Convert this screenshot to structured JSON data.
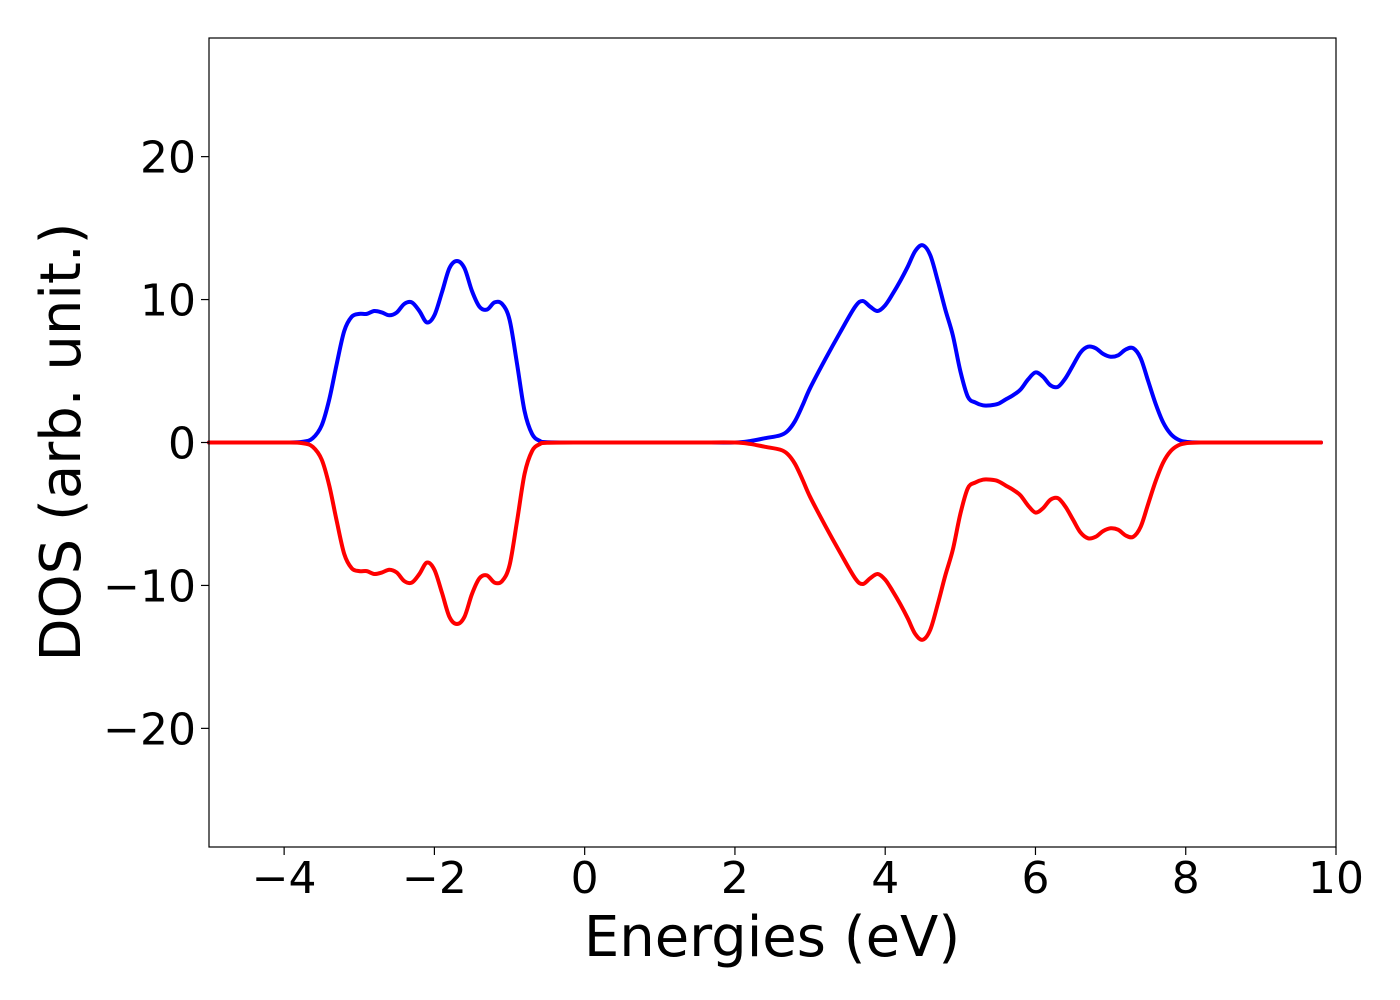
{
  "chart_data": {
    "type": "line",
    "xlabel": "Energies (eV)",
    "ylabel": "DOS (arb. unit.)",
    "xlim": [
      -5,
      10
    ],
    "ylim": [
      -28.3,
      28.3
    ],
    "xticks": [
      -4,
      -2,
      0,
      2,
      4,
      6,
      8,
      10
    ],
    "xtick_labels": [
      "−4",
      "−2",
      "0",
      "2",
      "4",
      "6",
      "8",
      "10"
    ],
    "yticks": [
      -20,
      -10,
      0,
      10,
      20
    ],
    "ytick_labels": [
      "−20",
      "−10",
      "0",
      "10",
      "20"
    ],
    "grid": false,
    "series": [
      {
        "color": "#0000ff",
        "x": [
          -5.0,
          -4.0,
          -3.75,
          -3.62,
          -3.5,
          -3.4,
          -3.3,
          -3.2,
          -3.1,
          -3.0,
          -2.9,
          -2.8,
          -2.7,
          -2.6,
          -2.5,
          -2.4,
          -2.3,
          -2.2,
          -2.1,
          -2.0,
          -1.9,
          -1.8,
          -1.7,
          -1.6,
          -1.5,
          -1.4,
          -1.3,
          -1.2,
          -1.1,
          -1.0,
          -0.9,
          -0.8,
          -0.7,
          -0.6,
          -0.5,
          0.0,
          1.0,
          1.5,
          2.0,
          2.2,
          2.4,
          2.6,
          2.7,
          2.8,
          2.9,
          3.0,
          3.2,
          3.4,
          3.6,
          3.7,
          3.8,
          3.9,
          4.0,
          4.1,
          4.2,
          4.3,
          4.4,
          4.5,
          4.6,
          4.7,
          4.8,
          4.9,
          5.0,
          5.1,
          5.2,
          5.3,
          5.4,
          5.5,
          5.6,
          5.7,
          5.8,
          5.9,
          6.0,
          6.1,
          6.2,
          6.3,
          6.4,
          6.5,
          6.6,
          6.7,
          6.8,
          6.9,
          7.0,
          7.1,
          7.2,
          7.3,
          7.4,
          7.5,
          7.6,
          7.7,
          7.8,
          7.9,
          8.0,
          8.2,
          9.0,
          9.8
        ],
        "y": [
          0.0,
          0.0,
          0.05,
          0.3,
          1.2,
          3.0,
          5.5,
          7.8,
          8.8,
          9.0,
          9.0,
          9.2,
          9.1,
          8.9,
          9.1,
          9.7,
          9.8,
          9.2,
          8.4,
          8.9,
          10.5,
          12.2,
          12.7,
          12.2,
          10.6,
          9.5,
          9.3,
          9.8,
          9.7,
          8.6,
          5.5,
          2.2,
          0.6,
          0.12,
          0.02,
          0.0,
          0.0,
          0.0,
          0.0,
          0.1,
          0.3,
          0.5,
          0.8,
          1.5,
          2.6,
          3.8,
          5.8,
          7.7,
          9.5,
          9.9,
          9.5,
          9.2,
          9.6,
          10.4,
          11.3,
          12.3,
          13.4,
          13.8,
          13.1,
          11.3,
          9.3,
          7.5,
          5.0,
          3.2,
          2.8,
          2.6,
          2.6,
          2.7,
          3.0,
          3.3,
          3.7,
          4.4,
          4.9,
          4.6,
          4.0,
          3.9,
          4.5,
          5.4,
          6.3,
          6.7,
          6.6,
          6.2,
          6.0,
          6.1,
          6.5,
          6.6,
          5.9,
          4.3,
          2.7,
          1.4,
          0.6,
          0.2,
          0.05,
          0.0,
          0.0,
          0.0
        ]
      },
      {
        "color": "#ff0000",
        "x": [
          -5.0,
          -4.0,
          -3.75,
          -3.62,
          -3.5,
          -3.4,
          -3.3,
          -3.2,
          -3.1,
          -3.0,
          -2.9,
          -2.8,
          -2.7,
          -2.6,
          -2.5,
          -2.4,
          -2.3,
          -2.2,
          -2.1,
          -2.0,
          -1.9,
          -1.8,
          -1.7,
          -1.6,
          -1.5,
          -1.4,
          -1.3,
          -1.2,
          -1.1,
          -1.0,
          -0.9,
          -0.8,
          -0.7,
          -0.6,
          -0.5,
          0.0,
          1.0,
          1.5,
          2.0,
          2.2,
          2.4,
          2.6,
          2.7,
          2.8,
          2.9,
          3.0,
          3.2,
          3.4,
          3.6,
          3.7,
          3.8,
          3.9,
          4.0,
          4.1,
          4.2,
          4.3,
          4.4,
          4.5,
          4.6,
          4.7,
          4.8,
          4.9,
          5.0,
          5.1,
          5.2,
          5.3,
          5.4,
          5.5,
          5.6,
          5.7,
          5.8,
          5.9,
          6.0,
          6.1,
          6.2,
          6.3,
          6.4,
          6.5,
          6.6,
          6.7,
          6.8,
          6.9,
          7.0,
          7.1,
          7.2,
          7.3,
          7.4,
          7.5,
          7.6,
          7.7,
          7.8,
          7.9,
          8.0,
          8.2,
          9.0,
          9.8
        ],
        "y": [
          0.0,
          0.0,
          -0.05,
          -0.3,
          -1.2,
          -3.0,
          -5.5,
          -7.8,
          -8.8,
          -9.0,
          -9.0,
          -9.2,
          -9.1,
          -8.9,
          -9.1,
          -9.7,
          -9.8,
          -9.2,
          -8.4,
          -8.9,
          -10.5,
          -12.2,
          -12.7,
          -12.2,
          -10.6,
          -9.5,
          -9.3,
          -9.8,
          -9.7,
          -8.6,
          -5.5,
          -2.2,
          -0.6,
          -0.12,
          -0.02,
          0.0,
          0.0,
          0.0,
          0.0,
          -0.1,
          -0.3,
          -0.5,
          -0.8,
          -1.5,
          -2.6,
          -3.8,
          -5.8,
          -7.7,
          -9.5,
          -9.9,
          -9.5,
          -9.2,
          -9.6,
          -10.4,
          -11.3,
          -12.3,
          -13.4,
          -13.8,
          -13.1,
          -11.3,
          -9.3,
          -7.5,
          -5.0,
          -3.2,
          -2.8,
          -2.6,
          -2.6,
          -2.7,
          -3.0,
          -3.3,
          -3.7,
          -4.4,
          -4.9,
          -4.6,
          -4.0,
          -3.9,
          -4.5,
          -5.4,
          -6.3,
          -6.7,
          -6.6,
          -6.2,
          -6.0,
          -6.1,
          -6.5,
          -6.6,
          -5.9,
          -4.3,
          -2.7,
          -1.4,
          -0.6,
          -0.2,
          -0.05,
          0.0,
          0.0,
          0.0
        ]
      }
    ]
  }
}
